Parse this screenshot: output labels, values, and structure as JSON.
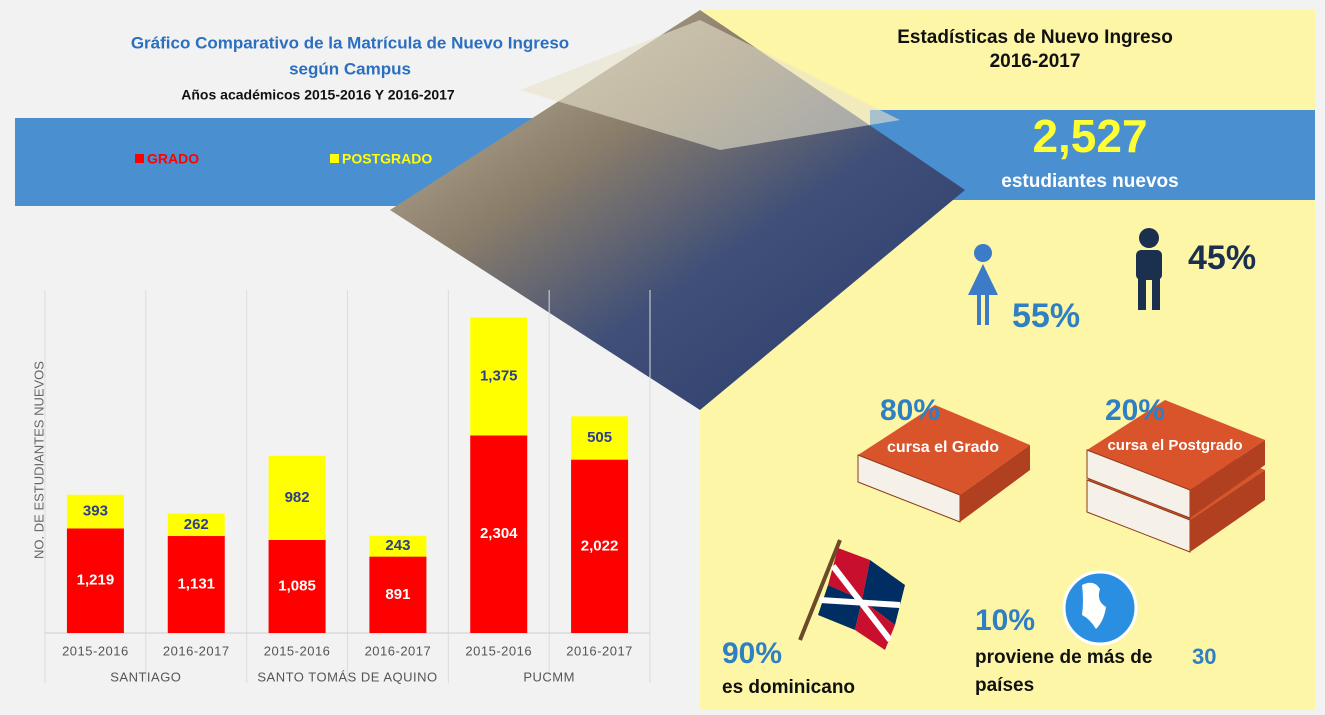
{
  "chart_data": {
    "type": "bar",
    "stacked": true,
    "title": "Gráfico Comparativo de la Matrícula de Nuevo Ingreso",
    "subtitle": "según Campus",
    "note": "Años académicos  2015-2016 Y 2016-2017",
    "ylabel": "NO. DE ESTUDIANTES NUEVOS",
    "categories": [
      "2015-2016",
      "2016-2017",
      "2015-2016",
      "2016-2017",
      "2015-2016",
      "2016-2017"
    ],
    "groups": [
      "SANTIAGO",
      "SANTO TOMÁS DE AQUINO",
      "PUCMM"
    ],
    "series": [
      {
        "name": "GRADO",
        "color": "#ff0000",
        "label_color": "#ffffff",
        "values": [
          1219,
          1131,
          1085,
          891,
          2304,
          2022
        ],
        "value_labels": [
          "1,219",
          "1,131",
          "1,085",
          "891",
          "2,304",
          "2,022"
        ]
      },
      {
        "name": "POSTGRADO",
        "color": "#ffff00",
        "label_color": "#2a3f8f",
        "values": [
          393,
          262,
          982,
          243,
          1375,
          505
        ],
        "value_labels": [
          "393",
          "262",
          "982",
          "243",
          "1,375",
          "505"
        ]
      }
    ],
    "ylim": [
      0,
      4000
    ],
    "grid": false,
    "legend": "top"
  },
  "infographic": {
    "title": "Estadísticas de Nuevo Ingreso",
    "years": "2016-2017",
    "total": "2,527",
    "total_label": "estudiantes nuevos",
    "women": "55%",
    "men": "45%",
    "grado_pct": "80%",
    "grado_label": "cursa el Grado",
    "postgrado_pct": "20%",
    "postgrado_label": "cursa el  Postgrado",
    "dominican_pct": "90%",
    "dominican_label": "es dominicano",
    "foreign_pct": "10%",
    "foreign_label": "proviene de más de",
    "foreign_count": "30",
    "foreign_unit": "países"
  }
}
